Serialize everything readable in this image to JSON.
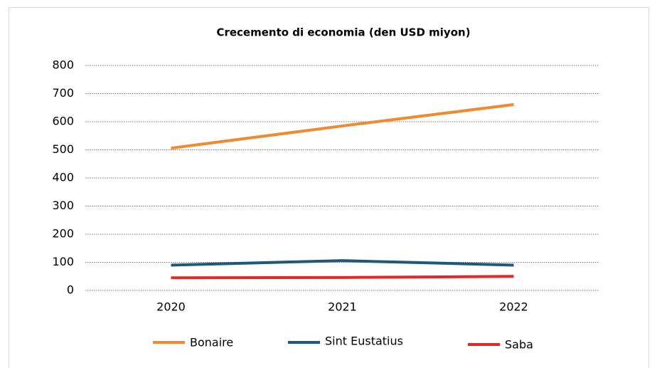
{
  "chart_data": {
    "type": "line",
    "title": "Crecemento di economia (den USD miyon)",
    "categories": [
      "2020",
      "2021",
      "2022"
    ],
    "series": [
      {
        "name": "Bonaire",
        "color": "#f08a30",
        "values": [
          506,
          585,
          661
        ]
      },
      {
        "name": "Sint Eustatius",
        "color": "#1f5878",
        "values": [
          90,
          106,
          90
        ]
      },
      {
        "name": "Saba",
        "color": "#e02a28",
        "values": [
          45,
          46,
          50
        ]
      }
    ],
    "ylim": [
      0,
      800
    ],
    "yticks": [
      0,
      100,
      200,
      300,
      400,
      500,
      600,
      700,
      800
    ],
    "grid": true,
    "legend": "bottom"
  }
}
